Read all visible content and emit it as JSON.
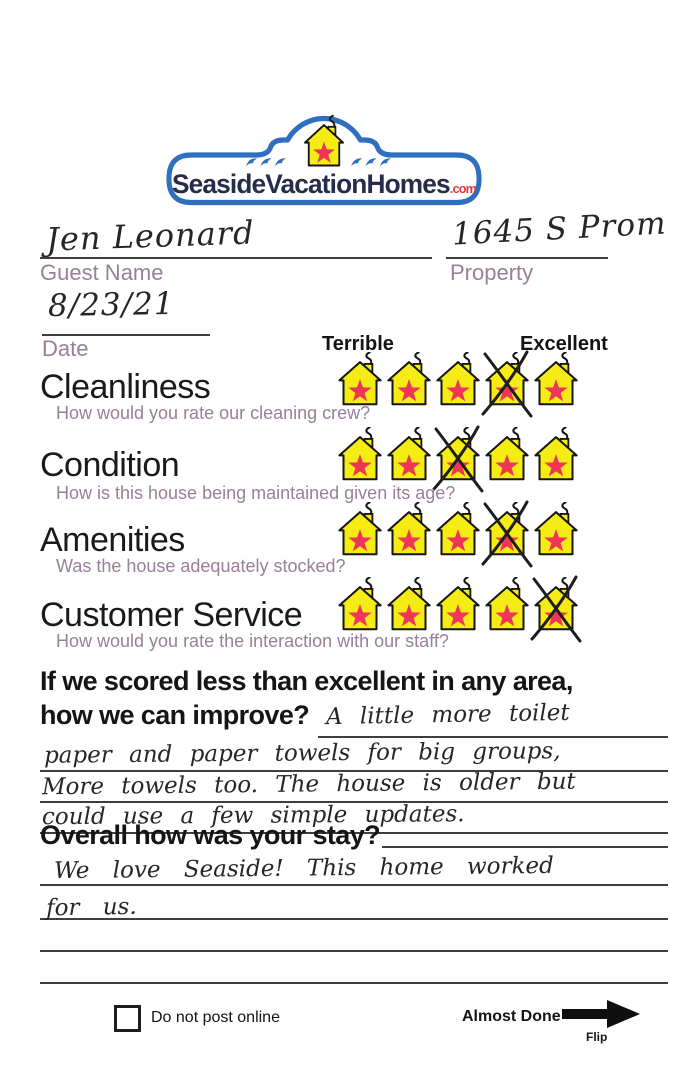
{
  "logo": {
    "brand": "SeasideVacationHomes",
    "tld": ".com"
  },
  "fields": {
    "guest_name": {
      "label": "Guest Name",
      "value": "Jen Leonard"
    },
    "property": {
      "label": "Property",
      "value": "1645 S Prom"
    },
    "date": {
      "label": "Date",
      "value": "8/23/21"
    }
  },
  "scale": {
    "left": "Terrible",
    "right": "Excellent"
  },
  "ratings": [
    {
      "label": "Cleanliness",
      "question": "How would you rate our cleaning crew?",
      "houses": 5,
      "crossed_house": 4
    },
    {
      "label": "Condition",
      "question": "How is this house being maintained given its age?",
      "houses": 5,
      "crossed_house": 3
    },
    {
      "label": "Amenities",
      "question": "Was the house adequately stocked?",
      "houses": 5,
      "crossed_house": 4
    },
    {
      "label": "Customer Service",
      "question": "How would you rate the interaction with our staff?",
      "houses": 5,
      "crossed_house": 5
    }
  ],
  "improve": {
    "prompt_line1": "If we scored less than excellent in any area,",
    "prompt_line2": "how we can improve?",
    "answer_lines": [
      "A little more toilet",
      "paper and paper towels for big groups,",
      "More towels too. The house is older but",
      "could use a few simple updates."
    ]
  },
  "overall": {
    "prompt": "Overall how was your stay?",
    "answer_lines": [
      "We love Seaside! This home worked",
      "for us."
    ]
  },
  "footer": {
    "checkbox_label": "Do not post online",
    "checkbox_checked": false,
    "almost_done": "Almost Done",
    "flip": "Flip"
  },
  "icons": {
    "rating_icon": "house-with-star",
    "crossed_mark": "x-mark",
    "logo_icon": "house-with-waves",
    "footer_icon": "right-arrow"
  },
  "colors": {
    "logo_blue": "#2e6fc0",
    "logo_text_navy": "#262c4a",
    "logo_com_red": "#e0393a",
    "house_yellow": "#f5ec14",
    "star_red": "#ef3659",
    "label_mauve": "#9a7e9a",
    "ink": "#1d1d1d"
  }
}
